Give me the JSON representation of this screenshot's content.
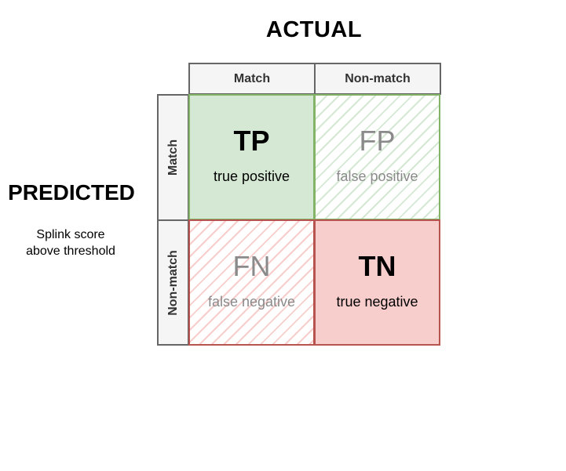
{
  "diagram": {
    "actual_title": "ACTUAL",
    "predicted_title": "PREDICTED",
    "predicted_subtitle": "Splink score above threshold",
    "column_headers": [
      "Match",
      "Non-match"
    ],
    "row_headers": [
      "Match",
      "Non-match"
    ],
    "cells": {
      "tp": {
        "abbr": "TP",
        "desc": "true positive"
      },
      "fp": {
        "abbr": "FP",
        "desc": "false positive"
      },
      "fn": {
        "abbr": "FN",
        "desc": "false negative"
      },
      "tn": {
        "abbr": "TN",
        "desc": "true negative"
      }
    },
    "colors": {
      "green_fill": "#d5e8d4",
      "green_border": "#82b366",
      "red_fill": "#f8cecc",
      "red_border": "#b85450",
      "header_fill": "#f5f5f5",
      "header_border": "#666666"
    }
  }
}
